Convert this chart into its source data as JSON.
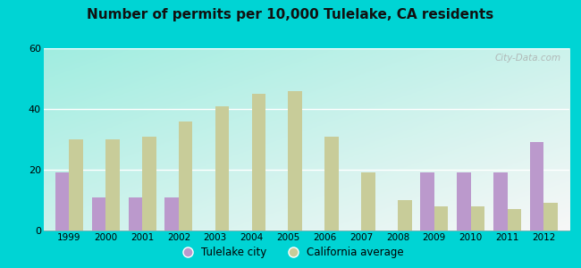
{
  "title": "Number of permits per 10,000 Tulelake, CA residents",
  "years": [
    1999,
    2000,
    2001,
    2002,
    2003,
    2004,
    2005,
    2006,
    2007,
    2008,
    2009,
    2010,
    2011,
    2012
  ],
  "tulelake": [
    19,
    11,
    11,
    11,
    0,
    0,
    0,
    0,
    0,
    0,
    19,
    19,
    19,
    29
  ],
  "california": [
    30,
    30,
    31,
    36,
    41,
    45,
    46,
    31,
    19,
    10,
    8,
    8,
    7,
    9
  ],
  "tulelake_color": "#bb99cc",
  "california_color": "#c8cc99",
  "bar_width": 0.38,
  "ylim": [
    0,
    60
  ],
  "yticks": [
    0,
    20,
    40,
    60
  ],
  "bg_top_left": "#a0e8e8",
  "bg_bottom_right": "#e8f5e8",
  "outer_background": "#00d4d4",
  "grid_color": "#dddddd",
  "watermark": "City-Data.com",
  "legend_tulelake": "Tulelake city",
  "legend_california": "California average"
}
